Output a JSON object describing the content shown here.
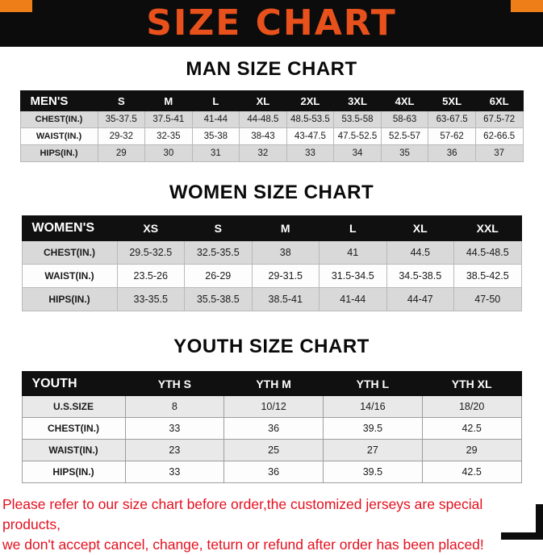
{
  "banner": {
    "title": "SIZE CHART",
    "title_color": "#e8511c",
    "corner_color": "#ee7e17",
    "background_color": "#0c0c0c"
  },
  "sections": [
    {
      "heading": "MAN SIZE CHART",
      "table": {
        "header": [
          "MEN'S",
          "S",
          "M",
          "L",
          "XL",
          "2XL",
          "3XL",
          "4XL",
          "5XL",
          "6XL"
        ],
        "rows": [
          [
            "CHEST(IN.)",
            "35-37.5",
            "37.5-41",
            "41-44",
            "44-48.5",
            "48.5-53.5",
            "53.5-58",
            "58-63",
            "63-67.5",
            "67.5-72"
          ],
          [
            "WAIST(IN.)",
            "29-32",
            "32-35",
            "35-38",
            "38-43",
            "43-47.5",
            "47.5-52.5",
            "52.5-57",
            "57-62",
            "62-66.5"
          ],
          [
            "HIPS(IN.)",
            "29",
            "30",
            "31",
            "32",
            "33",
            "34",
            "35",
            "36",
            "37"
          ]
        ]
      }
    },
    {
      "heading": "WOMEN SIZE CHART",
      "table": {
        "header": [
          "WOMEN'S",
          "XS",
          "S",
          "M",
          "L",
          "XL",
          "XXL"
        ],
        "rows": [
          [
            "CHEST(IN.)",
            "29.5-32.5",
            "32.5-35.5",
            "38",
            "41",
            "44.5",
            "44.5-48.5"
          ],
          [
            "WAIST(IN.)",
            "23.5-26",
            "26-29",
            "29-31.5",
            "31.5-34.5",
            "34.5-38.5",
            "38.5-42.5"
          ],
          [
            "HIPS(IN.)",
            "33-35.5",
            "35.5-38.5",
            "38.5-41",
            "41-44",
            "44-47",
            "47-50"
          ]
        ]
      }
    },
    {
      "heading": "YOUTH SIZE CHART",
      "table": {
        "header": [
          "YOUTH",
          "YTH S",
          "YTH M",
          "YTH L",
          "YTH XL"
        ],
        "rows": [
          [
            "U.S.SIZE",
            "8",
            "10/12",
            "14/16",
            "18/20"
          ],
          [
            "CHEST(IN.)",
            "33",
            "36",
            "39.5",
            "42.5"
          ],
          [
            "WAIST(IN.)",
            "23",
            "25",
            "27",
            "29"
          ],
          [
            "HIPS(IN.)",
            "33",
            "36",
            "39.5",
            "42.5"
          ]
        ]
      }
    }
  ],
  "disclaimer": {
    "lines": [
      "Please refer to our size chart before order,the customized jerseys are special products,",
      "we don't accept cancel, change, teturn or refund after order has been placed!"
    ],
    "color": "#e4101f"
  }
}
